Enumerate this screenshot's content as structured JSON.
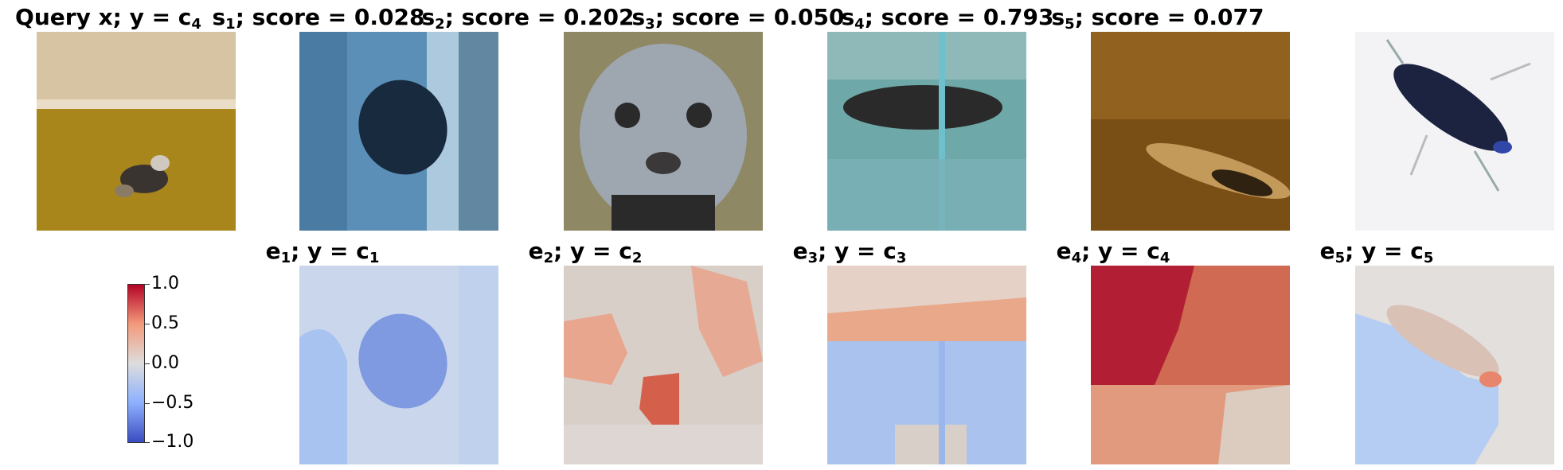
{
  "titles": {
    "query": {
      "main": "Query x; y = c",
      "sub": "4"
    },
    "s1": {
      "pre": "s",
      "sub": "1",
      "post": "; score = 0.028"
    },
    "s2": {
      "pre": "s",
      "sub": "2",
      "post": "; score = 0.202"
    },
    "s3": {
      "pre": "s",
      "sub": "3",
      "post": "; score = 0.050"
    },
    "s4": {
      "pre": "s",
      "sub": "4",
      "post": "; score = 0.793"
    },
    "s5": {
      "pre": "s",
      "sub": "5",
      "post": "; score = 0.077"
    },
    "e1": {
      "pre": "e",
      "sub": "1",
      "mid": "; y = c",
      "sub2": "1"
    },
    "e2": {
      "pre": "e",
      "sub": "2",
      "mid": "; y = c",
      "sub2": "2"
    },
    "e3": {
      "pre": "e",
      "sub": "3",
      "mid": "; y = c",
      "sub2": "3"
    },
    "e4": {
      "pre": "e",
      "sub": "4",
      "mid": "; y = c",
      "sub2": "4"
    },
    "e5": {
      "pre": "e",
      "sub": "5",
      "mid": "; y = c",
      "sub2": "5"
    }
  },
  "colorbar": {
    "ticks": [
      "1.0",
      "0.5",
      "0.0",
      "−0.5",
      "−1.0"
    ],
    "colors": {
      "high": "#b40426",
      "mid": "#dddddd",
      "low": "#3b4cc0"
    }
  }
}
